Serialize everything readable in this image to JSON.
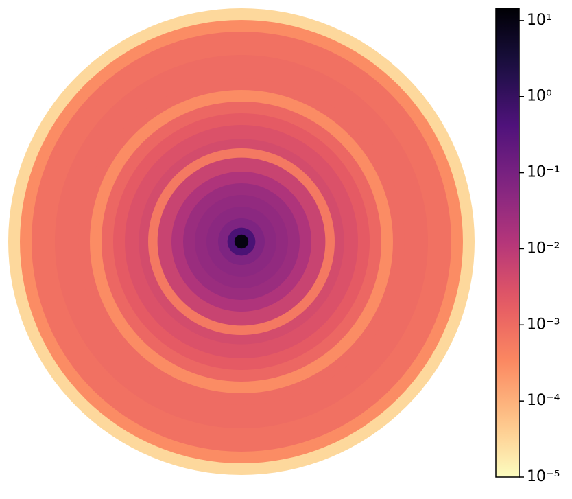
{
  "chart_data": {
    "type": "radial-heatmap",
    "x": [
      0.03,
      0.06,
      0.1,
      0.15,
      0.2,
      0.25,
      0.3,
      0.36,
      0.4,
      0.44,
      0.5,
      0.55,
      0.6,
      0.65,
      0.7,
      0.8,
      0.9,
      0.95,
      1.0
    ],
    "values": [
      10,
      0.5,
      0.08,
      0.05,
      0.04,
      0.03,
      0.015,
      0.006,
      0.0006,
      0.004,
      0.003,
      0.002,
      0.0012,
      0.0003,
      0.001,
      0.001,
      0.0008,
      0.0003,
      3e-05
    ],
    "colormap": "magma_r",
    "log_scale": true,
    "clim": [
      1e-05,
      14.5
    ],
    "cticks": [
      {
        "value": 10,
        "label": "10¹"
      },
      {
        "value": 1,
        "label": "10⁰"
      },
      {
        "value": 0.1,
        "label": "10⁻¹"
      },
      {
        "value": 0.01,
        "label": "10⁻²"
      },
      {
        "value": 0.001,
        "label": "10⁻³"
      },
      {
        "value": 0.0001,
        "label": "10⁻⁴"
      },
      {
        "value": 1e-05,
        "label": "10⁻⁵"
      }
    ]
  }
}
